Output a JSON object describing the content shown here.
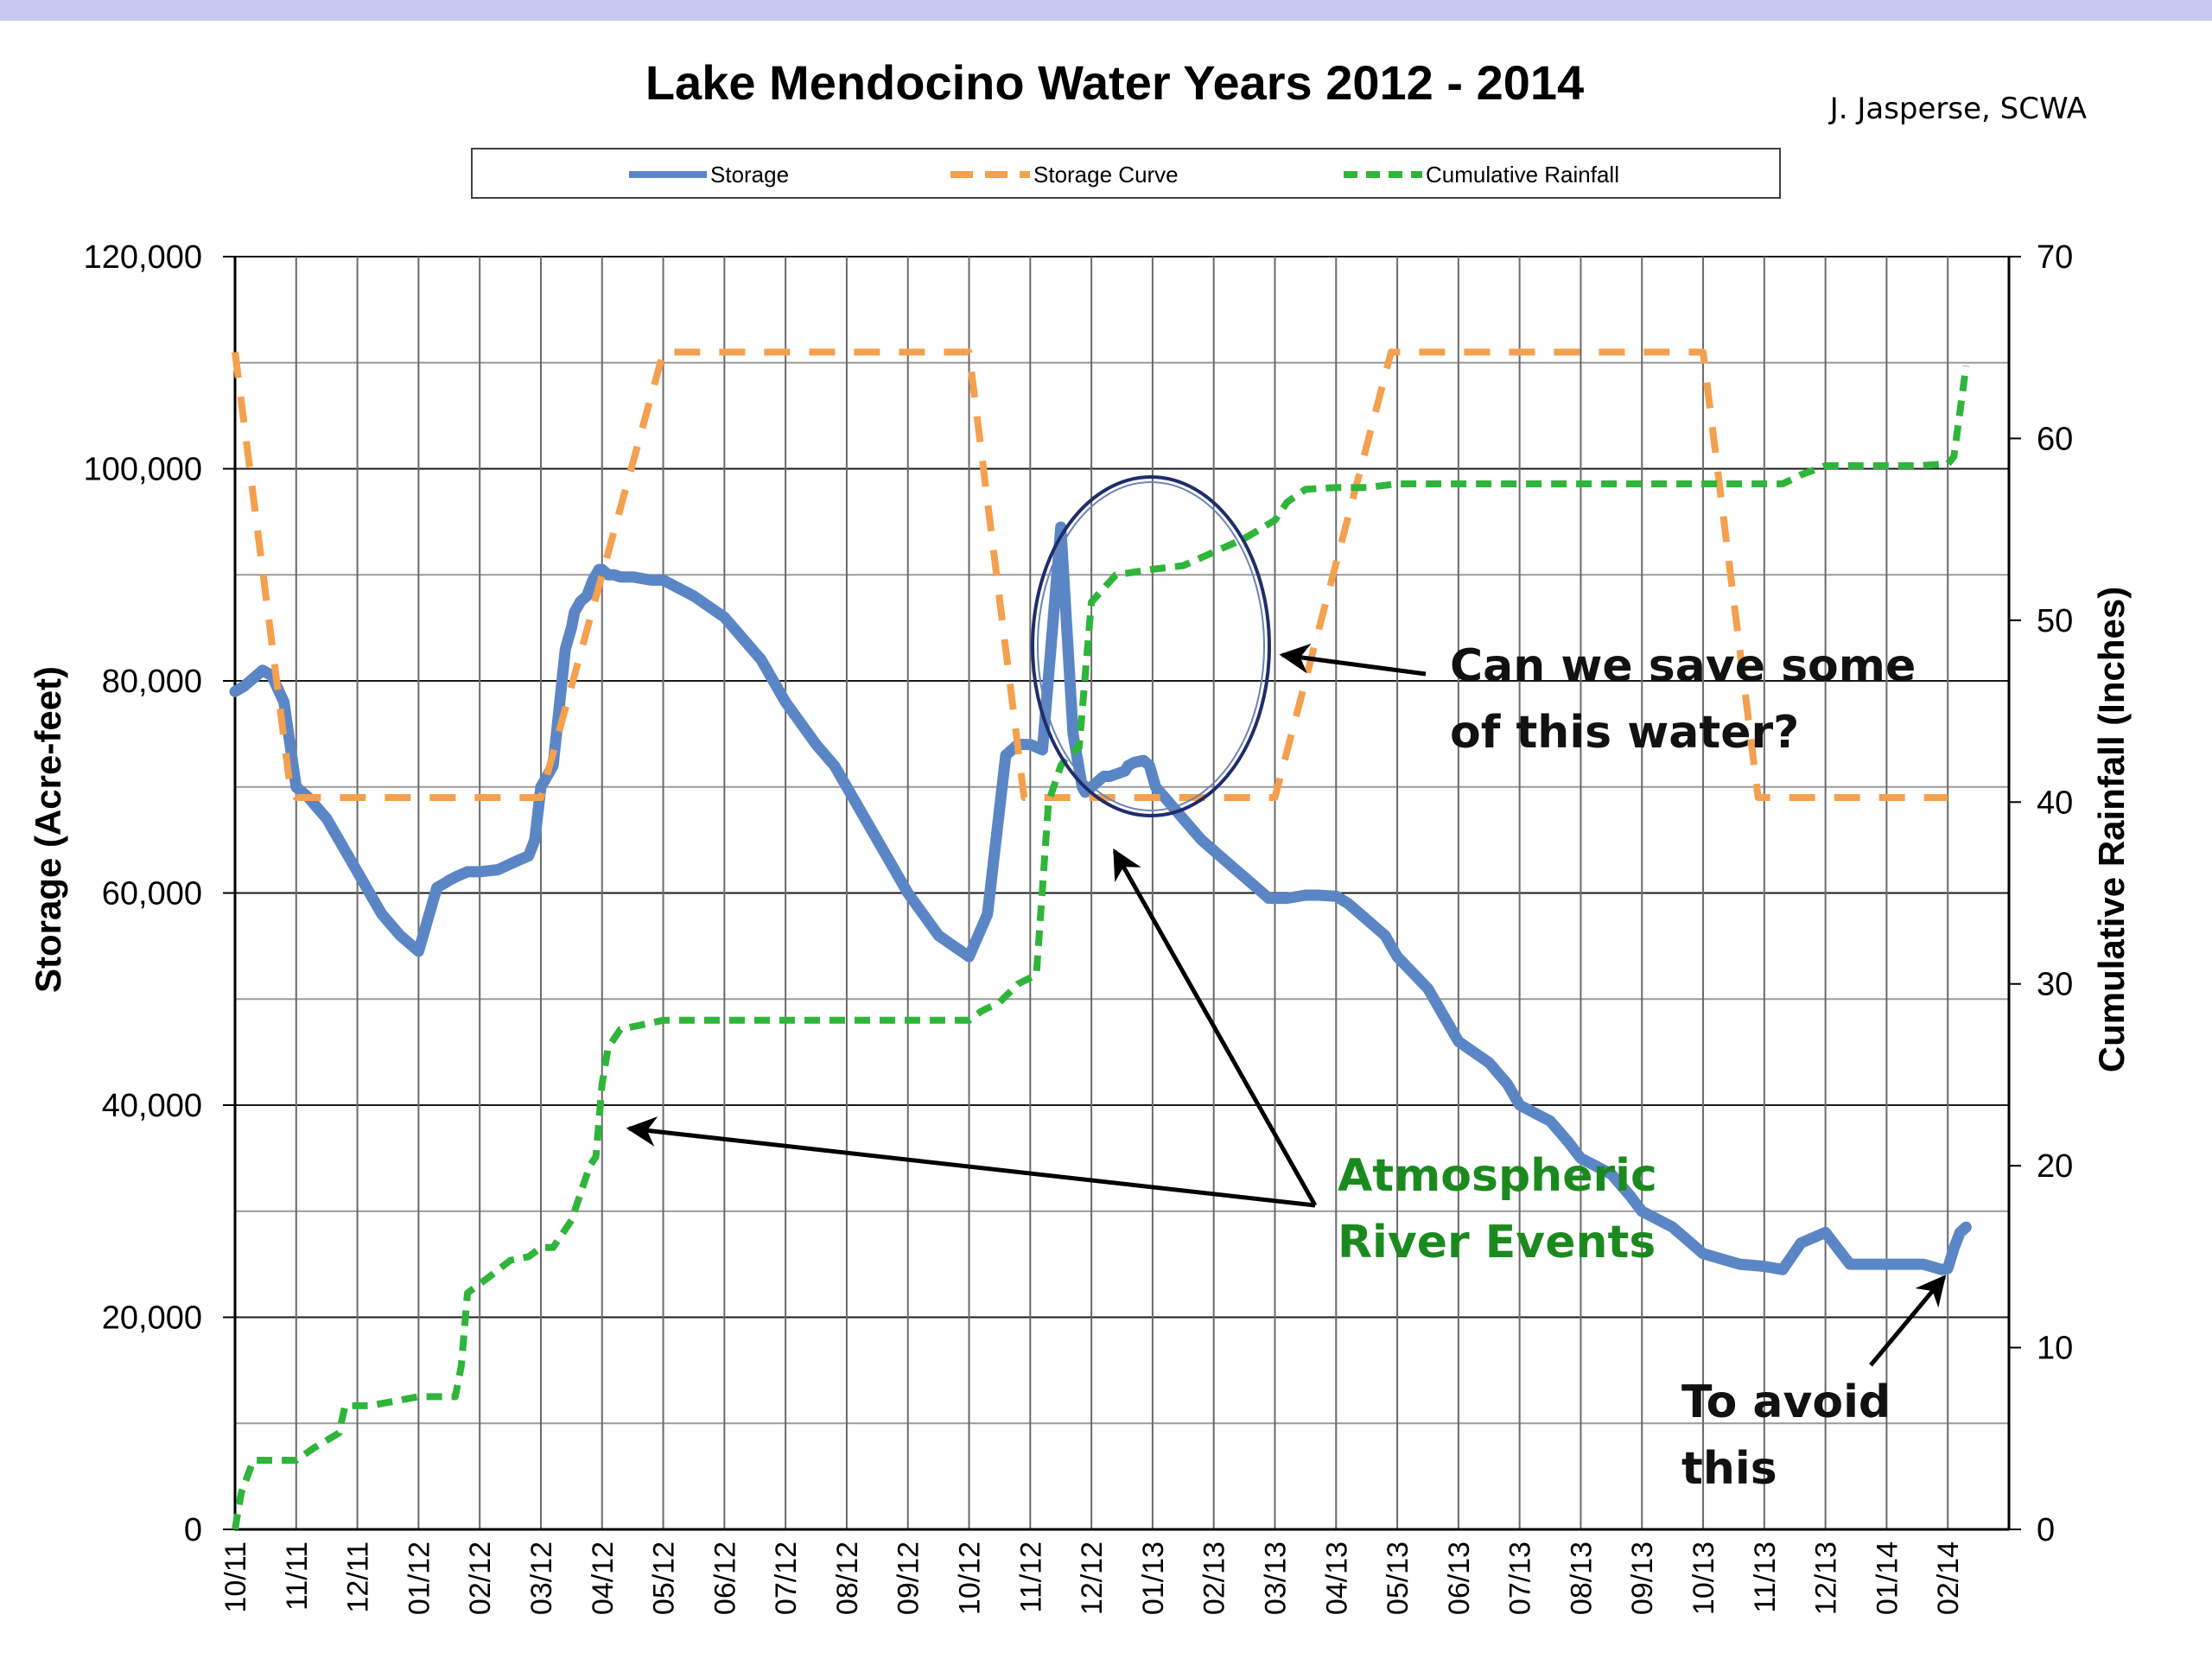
{
  "chart_data": {
    "type": "line",
    "title": "Lake Mendocino Water Years 2012 - 2014",
    "credit": "J. Jasperse, SCWA",
    "ylabel": "Storage (Acre-feet)",
    "y2label": "Cumulative Rainfall (Inches)",
    "ylim": [
      0,
      120000
    ],
    "y2lim": [
      0,
      70
    ],
    "yticks": [
      "0",
      "20,000",
      "40,000",
      "60,000",
      "80,000",
      "100,000",
      "120,000"
    ],
    "y2ticks": [
      "0",
      "10",
      "20",
      "30",
      "40",
      "50",
      "60",
      "70"
    ],
    "xticks": [
      "10/11",
      "11/11",
      "12/11",
      "01/12",
      "02/12",
      "03/12",
      "04/12",
      "05/12",
      "06/12",
      "07/12",
      "08/12",
      "09/12",
      "10/12",
      "11/12",
      "12/12",
      "01/13",
      "02/13",
      "03/13",
      "04/13",
      "05/13",
      "06/13",
      "07/13",
      "08/13",
      "09/13",
      "10/13",
      "11/13",
      "12/13",
      "01/14",
      "02/14"
    ],
    "grid": true,
    "legend_position": "top",
    "series": [
      {
        "name": "Storage",
        "axis": "left",
        "color": "#5b86c6",
        "style": "solid",
        "x": [
          0,
          0.15,
          0.35,
          0.45,
          0.6,
          0.8,
          0.9,
          1.0,
          1.2,
          1.5,
          1.8,
          2.0,
          2.2,
          2.4,
          2.7,
          3.0,
          3.3,
          3.45,
          3.5,
          3.6,
          3.8,
          4.0,
          4.3,
          4.6,
          4.8,
          4.9,
          5.0,
          5.2,
          5.4,
          5.5,
          5.55,
          5.65,
          5.75,
          5.85,
          5.95,
          6.0,
          6.1,
          6.2,
          6.3,
          6.5,
          6.8,
          7.0,
          7.5,
          8.0,
          8.3,
          8.6,
          9.0,
          9.5,
          9.8,
          10.2,
          10.5,
          11.0,
          11.5,
          12.0,
          12.3,
          12.6,
          12.8,
          13.0,
          13.2,
          13.5,
          13.7,
          13.85,
          13.9,
          14.0,
          14.1,
          14.2,
          14.3,
          14.4,
          14.55,
          14.6,
          14.7,
          14.85,
          14.95,
          15.05,
          15.2,
          15.5,
          15.8,
          16.0,
          16.3,
          16.6,
          16.9,
          17.2,
          17.5,
          17.7,
          18.0,
          18.2,
          18.5,
          18.8,
          19.0,
          19.5,
          19.8,
          20.0,
          20.5,
          20.8,
          21.0,
          21.5,
          21.8,
          22.0,
          22.5,
          22.8,
          23.0,
          23.5,
          23.8,
          24.0,
          24.3,
          24.6,
          25.0,
          25.3,
          25.6,
          26.0,
          26.4,
          26.8,
          27.0,
          27.3,
          27.6,
          27.9,
          28.0,
          28.1,
          28.2,
          28.3
        ],
        "y": [
          79000,
          79500,
          80500,
          81000,
          80500,
          78000,
          74000,
          70000,
          69000,
          67000,
          64000,
          62000,
          60000,
          58000,
          56000,
          54500,
          60500,
          61000,
          61200,
          61500,
          62000,
          62000,
          62200,
          63000,
          63500,
          65000,
          70000,
          72000,
          83000,
          85000,
          86500,
          87500,
          88000,
          89500,
          90500,
          90500,
          90000,
          90000,
          89800,
          89800,
          89500,
          89500,
          88000,
          86000,
          84000,
          82000,
          78000,
          74000,
          72000,
          68000,
          65000,
          60000,
          56000,
          54000,
          58000,
          73000,
          74000,
          74000,
          73500,
          94500,
          75000,
          70000,
          69500,
          70000,
          70500,
          71000,
          71000,
          71200,
          71500,
          72000,
          72300,
          72500,
          72000,
          70000,
          69000,
          67000,
          65000,
          64000,
          62500,
          61000,
          59500,
          59500,
          59800,
          59800,
          59700,
          59000,
          57500,
          56000,
          54000,
          51000,
          48000,
          46000,
          44000,
          42000,
          40000,
          38500,
          36500,
          35000,
          33500,
          31500,
          30000,
          28500,
          27000,
          26000,
          25500,
          25000,
          24800,
          24500,
          27000,
          28000,
          25000,
          25000,
          25000,
          25000,
          25000,
          24500,
          24600,
          26500,
          28000,
          28500
        ],
        "x_trim_note": ""
      },
      {
        "name": "Storage Curve",
        "axis": "left",
        "color": "#f4a04e",
        "style": "dashed",
        "x": [
          0,
          0.9,
          1.0,
          5.0,
          7.0,
          12.0,
          12.9,
          14.0,
          17.0,
          18.9,
          21.0,
          24.0,
          24.9,
          28.0
        ],
        "y": [
          111000,
          70000,
          69000,
          69000,
          111000,
          111000,
          69000,
          69000,
          69000,
          111000,
          111000,
          111000,
          69000,
          69000
        ]
      },
      {
        "name": "Cumulative Rainfall",
        "axis": "right",
        "color": "#2fb53a",
        "style": "dashed",
        "x": [
          0,
          0.1,
          0.3,
          1.0,
          1.3,
          1.7,
          1.8,
          2.2,
          3.0,
          3.6,
          3.7,
          3.8,
          4.2,
          4.5,
          4.8,
          5.0,
          5.2,
          5.5,
          5.8,
          5.9,
          6.0,
          6.1,
          6.3,
          7.0,
          8.0,
          10.0,
          12.0,
          12.2,
          12.5,
          12.8,
          13.1,
          13.3,
          13.5,
          13.6,
          13.8,
          14.0,
          14.4,
          15.0,
          15.5,
          16.5,
          17.0,
          17.2,
          17.5,
          18.0,
          18.5,
          19.0,
          20.0,
          21.0,
          23.0,
          24.0,
          25.0,
          25.3,
          25.6,
          26.0,
          26.4,
          27.0,
          27.5,
          28.0,
          28.1,
          28.3
        ],
        "y": [
          0,
          2,
          3.8,
          3.8,
          4.5,
          5.3,
          6.8,
          6.8,
          7.3,
          7.3,
          9,
          13,
          14,
          14.8,
          15,
          15.5,
          15.5,
          17,
          20,
          20.5,
          24.5,
          26.5,
          27.5,
          28,
          28,
          28,
          28,
          28.5,
          29,
          30,
          30.5,
          40,
          42,
          42.5,
          43,
          51,
          52.5,
          52.8,
          53,
          54.5,
          55.5,
          56.5,
          57.2,
          57.3,
          57.3,
          57.5,
          57.5,
          57.5,
          57.5,
          57.5,
          57.5,
          57.5,
          58,
          58.5,
          58.5,
          58.5,
          58.5,
          58.6,
          59,
          64
        ]
      }
    ],
    "annotations": {
      "save_question": [
        "Can we save some",
        "of this water?"
      ],
      "ar_events": [
        "Atmospheric",
        "River Events"
      ],
      "avoid": [
        "To avoid",
        "this"
      ]
    }
  }
}
